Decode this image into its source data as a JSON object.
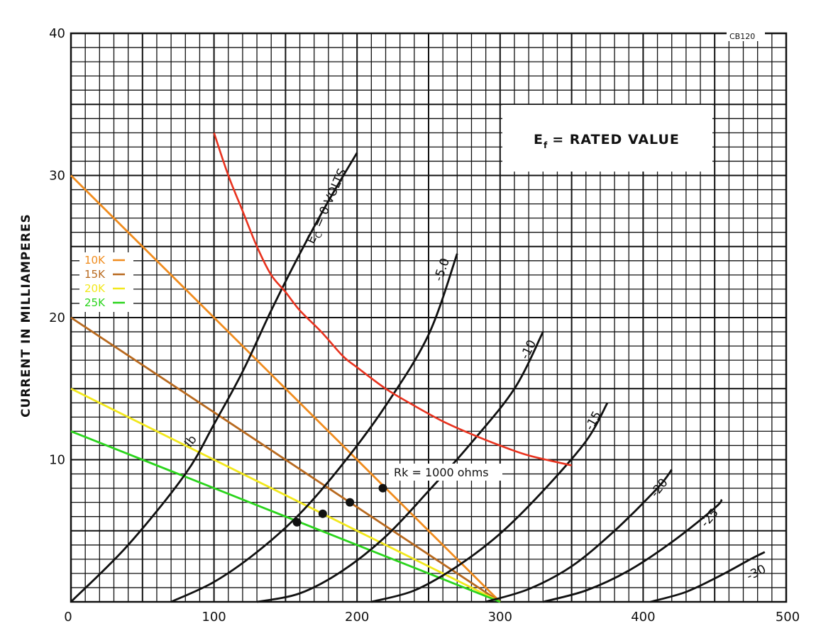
{
  "chart_data": {
    "type": "line",
    "title": "",
    "ylabel": "CURRENT IN MILLIAMPERES",
    "xlabel": "",
    "xlim": [
      0,
      500
    ],
    "ylim": [
      0,
      40
    ],
    "x_ticks": [
      "0",
      "100",
      "200",
      "300",
      "400",
      "500"
    ],
    "y_ticks": [
      "10",
      "20",
      "30",
      "40"
    ],
    "grid": true,
    "drawing_code": "CB120",
    "info_box": "Ef = RATED VALUE",
    "ef_symbol": "E",
    "ef_subscript": "f",
    "ef_rest": "= RATED VALUE",
    "ec_prefix": "E",
    "ec_subscript": "C",
    "ec_rest": "= 0 VOLTS",
    "ib_label": "Ib",
    "grid_curves": [
      {
        "name": "Ec = 0 VOLTS",
        "label": "",
        "color": "#111111",
        "x": [
          0,
          40,
          80,
          100,
          120,
          140,
          160,
          180,
          200
        ],
        "y": [
          0,
          4.0,
          9.0,
          12.5,
          16.2,
          20.5,
          24.5,
          28.2,
          31.6
        ]
      },
      {
        "name": "-5.0",
        "label": "-5.0",
        "color": "#111111",
        "x": [
          70,
          100,
          130,
          160,
          190,
          220,
          250,
          270
        ],
        "y": [
          0,
          1.4,
          3.5,
          6.2,
          9.7,
          13.8,
          18.8,
          24.5
        ]
      },
      {
        "name": "-10",
        "label": "-10",
        "color": "#111111",
        "x": [
          130,
          160,
          190,
          220,
          250,
          280,
          310,
          330
        ],
        "y": [
          0,
          0.6,
          2.2,
          4.6,
          7.8,
          11.2,
          15.0,
          19.0
        ]
      },
      {
        "name": "-15",
        "label": "-15",
        "color": "#111111",
        "x": [
          210,
          240,
          270,
          300,
          330,
          360,
          375
        ],
        "y": [
          0,
          0.8,
          2.5,
          4.8,
          7.8,
          11.3,
          14.0
        ]
      },
      {
        "name": "-20",
        "label": "-20",
        "color": "#111111",
        "x": [
          290,
          320,
          350,
          380,
          410,
          420
        ],
        "y": [
          0,
          0.9,
          2.5,
          5.0,
          8.0,
          9.3
        ]
      },
      {
        "name": "-25",
        "label": "-25",
        "color": "#111111",
        "x": [
          330,
          360,
          390,
          420,
          450,
          455
        ],
        "y": [
          0,
          0.8,
          2.2,
          4.2,
          6.6,
          7.2
        ]
      },
      {
        "name": "-30",
        "label": "-30",
        "color": "#111111",
        "x": [
          405,
          430,
          455,
          475,
          485
        ],
        "y": [
          0,
          0.7,
          1.9,
          3.0,
          3.5
        ]
      }
    ],
    "max_dissipation_curve": {
      "name": "",
      "color": "#e8321e",
      "x": [
        100,
        110,
        120,
        130,
        140,
        150,
        160,
        175,
        190,
        200,
        220,
        240,
        260,
        280,
        300,
        320,
        350
      ],
      "y": [
        33.0,
        30.0,
        27.5,
        25.0,
        23.0,
        21.8,
        20.5,
        19.0,
        17.3,
        16.5,
        15.0,
        13.8,
        12.7,
        11.8,
        11.0,
        10.3,
        9.6
      ]
    },
    "load_lines": [
      {
        "name": "10K",
        "color": "#f08c1e",
        "x": [
          0,
          300
        ],
        "y": [
          30,
          0
        ]
      },
      {
        "name": "15K",
        "color": "#b8691e",
        "x": [
          0,
          300
        ],
        "y": [
          20,
          0
        ]
      },
      {
        "name": "20K",
        "color": "#f2e81c",
        "x": [
          0,
          300
        ],
        "y": [
          15,
          0
        ]
      },
      {
        "name": "25K",
        "color": "#2ad41c",
        "x": [
          0,
          300
        ],
        "y": [
          12,
          0
        ]
      }
    ],
    "legend": [
      {
        "label": "10K",
        "color": "#f08c1e"
      },
      {
        "label": "15K",
        "color": "#b8691e"
      },
      {
        "label": "20K",
        "color": "#f2e81c"
      },
      {
        "label": "25K",
        "color": "#2ad41c"
      }
    ],
    "operating_points": {
      "label": "Rk = 1000 ohms",
      "x": [
        158,
        176,
        195,
        218
      ],
      "y": [
        5.6,
        6.2,
        7.0,
        8.0
      ]
    }
  }
}
